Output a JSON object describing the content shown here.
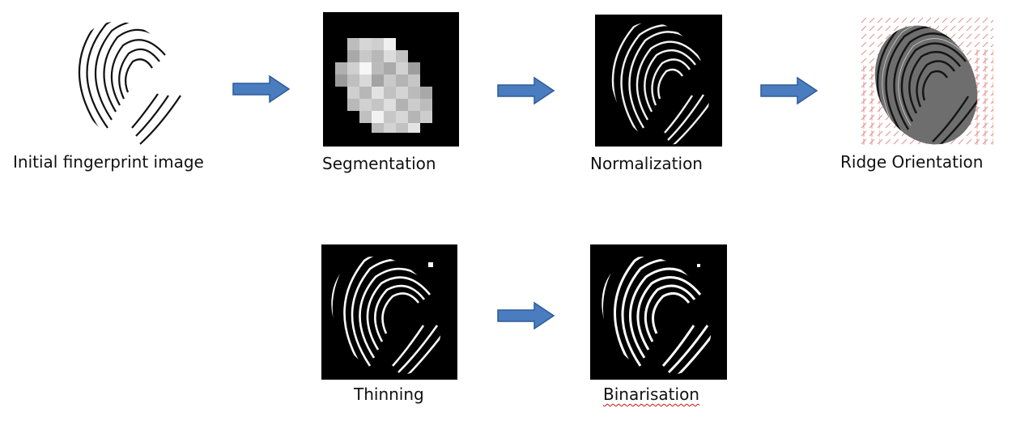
{
  "colors": {
    "arrow": "#4a7cc0",
    "arrow_stroke": "#2f5b97",
    "panel_bg": "#000000",
    "orientation_marks": "#e08a8a"
  },
  "steps": [
    {
      "id": "initial",
      "label": "Initial fingerprint image"
    },
    {
      "id": "segmentation",
      "label": "Segmentation"
    },
    {
      "id": "normalization",
      "label": "Normalization"
    },
    {
      "id": "orientation",
      "label": "Ridge Orientation"
    },
    {
      "id": "thinning",
      "label": "Thinning"
    },
    {
      "id": "binarisation",
      "label": "Binarisation"
    }
  ],
  "icons": {
    "arrow": "right-arrow-icon"
  }
}
